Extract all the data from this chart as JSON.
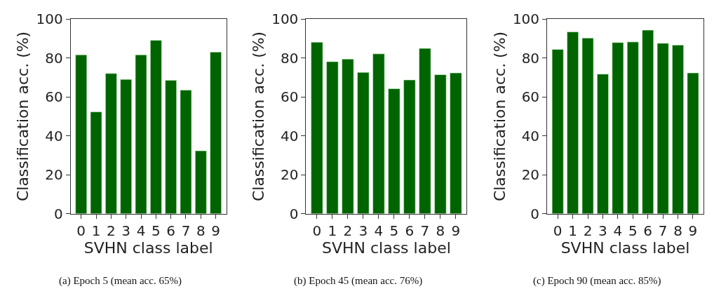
{
  "chart_data": [
    {
      "type": "bar",
      "categories": [
        "0",
        "1",
        "2",
        "3",
        "4",
        "5",
        "6",
        "7",
        "8",
        "9"
      ],
      "xlabel": "SVHN class label",
      "ylabel": "Classification acc. (%)",
      "ylim": [
        0,
        100
      ],
      "yticks": [
        0,
        20,
        40,
        60,
        80,
        100
      ],
      "series": [
        {
          "color": "#006400",
          "values": [
            81.6,
            52.3,
            72.0,
            69.0,
            81.6,
            89.1,
            68.5,
            63.5,
            32.3,
            83.0
          ]
        }
      ],
      "annotations": [
        "(a) Epoch 5 (mean acc. 65%)"
      ]
    },
    {
      "type": "bar",
      "categories": [
        "0",
        "1",
        "2",
        "3",
        "4",
        "5",
        "6",
        "7",
        "8",
        "9"
      ],
      "xlabel": "SVHN class label",
      "ylabel": "Classification acc. (%)",
      "ylim": [
        0,
        100
      ],
      "yticks": [
        0,
        20,
        40,
        60,
        80,
        100
      ],
      "series": [
        {
          "color": "#006400",
          "values": [
            88.1,
            78.1,
            79.4,
            72.6,
            82.1,
            64.2,
            68.7,
            84.9,
            71.4,
            72.3
          ]
        }
      ],
      "annotations": [
        "(b) Epoch 45 (mean acc. 76%)"
      ]
    },
    {
      "type": "bar",
      "categories": [
        "0",
        "1",
        "2",
        "3",
        "4",
        "5",
        "6",
        "7",
        "8",
        "9"
      ],
      "xlabel": "SVHN class label",
      "ylabel": "Classification acc. (%)",
      "ylim": [
        0,
        100
      ],
      "yticks": [
        0,
        20,
        40,
        60,
        80,
        100
      ],
      "series": [
        {
          "color": "#006400",
          "values": [
            84.4,
            93.4,
            90.2,
            71.7,
            87.9,
            88.2,
            94.3,
            87.5,
            86.6,
            72.3
          ]
        }
      ],
      "annotations": [
        "(c) Epoch 90 (mean acc. 85%)"
      ]
    }
  ]
}
